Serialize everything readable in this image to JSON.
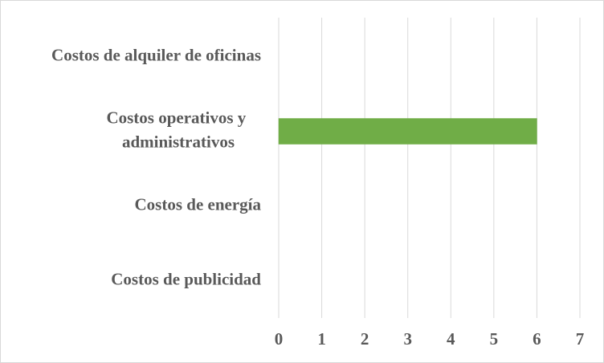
{
  "chart_data": {
    "type": "bar",
    "orientation": "horizontal",
    "categories": [
      "Costos de alquiler de oficinas",
      "Costos operativos y administrativos",
      "Costos de energía",
      "Costos de publicidad"
    ],
    "values": [
      0,
      6,
      0,
      0
    ],
    "color": "#70ad47",
    "xlim": [
      0,
      7
    ],
    "xticks": [
      0,
      1,
      2,
      3,
      4,
      5,
      6,
      7
    ],
    "grid": true
  }
}
